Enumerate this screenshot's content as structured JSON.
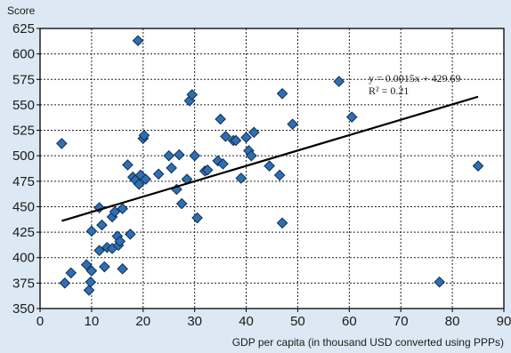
{
  "chart_data": {
    "type": "scatter",
    "title": "",
    "xlabel": "GDP per capita (in thousand USD converted using PPPs)",
    "ylabel": "Score",
    "xlim": [
      0,
      90
    ],
    "ylim": [
      350,
      625
    ],
    "x_ticks": [
      0,
      10,
      20,
      30,
      40,
      50,
      60,
      70,
      80,
      90
    ],
    "y_ticks": [
      350,
      375,
      400,
      425,
      450,
      475,
      500,
      525,
      550,
      575,
      600,
      625
    ],
    "grid": true,
    "colors": {
      "marker_fill": "#2f6fb0",
      "marker_stroke": "#0d2f55",
      "trendline": "#000000",
      "background": "#dce9f4",
      "plot_background": "#ffffff"
    },
    "series": [
      {
        "marker": "diamond",
        "points": [
          [
            4.2,
            512
          ],
          [
            4.8,
            375
          ],
          [
            6.0,
            385
          ],
          [
            9.0,
            393
          ],
          [
            9.5,
            368
          ],
          [
            9.8,
            376
          ],
          [
            10.0,
            387
          ],
          [
            10.0,
            426
          ],
          [
            11.5,
            449
          ],
          [
            11.5,
            407
          ],
          [
            12.0,
            432
          ],
          [
            12.5,
            391
          ],
          [
            13.0,
            410
          ],
          [
            14.0,
            409
          ],
          [
            14.0,
            440
          ],
          [
            14.5,
            445
          ],
          [
            15.0,
            421
          ],
          [
            15.2,
            412
          ],
          [
            15.5,
            416
          ],
          [
            16.0,
            448
          ],
          [
            16.0,
            389
          ],
          [
            17.0,
            491
          ],
          [
            17.5,
            423
          ],
          [
            18.0,
            479
          ],
          [
            18.5,
            476
          ],
          [
            19.0,
            613
          ],
          [
            19.2,
            472
          ],
          [
            19.5,
            481
          ],
          [
            20.0,
            517
          ],
          [
            20.2,
            520
          ],
          [
            20.5,
            477
          ],
          [
            23.0,
            482
          ],
          [
            25.0,
            500
          ],
          [
            25.5,
            488
          ],
          [
            26.5,
            467
          ],
          [
            27.0,
            501
          ],
          [
            27.5,
            453
          ],
          [
            28.5,
            477
          ],
          [
            29.0,
            554
          ],
          [
            29.5,
            560
          ],
          [
            30.0,
            500
          ],
          [
            30.5,
            439
          ],
          [
            32.0,
            485
          ],
          [
            32.5,
            486
          ],
          [
            34.5,
            495
          ],
          [
            35.0,
            536
          ],
          [
            35.5,
            492
          ],
          [
            36.0,
            519
          ],
          [
            37.5,
            515
          ],
          [
            38.0,
            515
          ],
          [
            39.0,
            478
          ],
          [
            40.0,
            518
          ],
          [
            40.5,
            505
          ],
          [
            41.0,
            500
          ],
          [
            41.5,
            523
          ],
          [
            44.5,
            490
          ],
          [
            46.5,
            481
          ],
          [
            47.0,
            434
          ],
          [
            47.0,
            561
          ],
          [
            49.0,
            531
          ],
          [
            58.0,
            573
          ],
          [
            60.5,
            538
          ],
          [
            77.5,
            376
          ],
          [
            85.0,
            490
          ]
        ]
      }
    ],
    "trendline": {
      "equation_label": "y = 0.0015x + 429.69",
      "r2_label": "R² = 0.21",
      "x_range": [
        4.2,
        85.0
      ],
      "y_start": 436,
      "y_end": 558
    }
  }
}
